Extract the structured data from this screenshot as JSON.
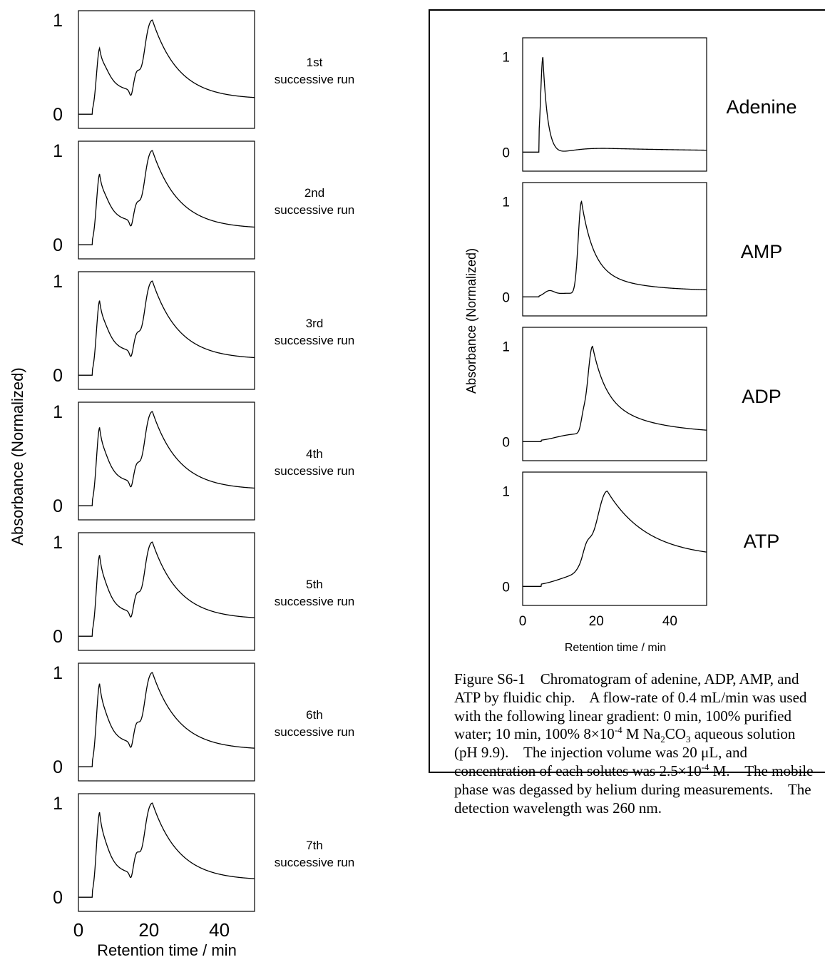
{
  "left_panel": {
    "ylabel": "Absorbance (Normalized)",
    "xlabel": "Retention time / min",
    "x_ticks": [
      "0",
      "20",
      "40"
    ],
    "y_ticks": [
      "0",
      "1"
    ],
    "runs": [
      {
        "label_line1": "1st",
        "label_line2": "successive run"
      },
      {
        "label_line1": "2nd",
        "label_line2": "successive run"
      },
      {
        "label_line1": "3rd",
        "label_line2": "successive run"
      },
      {
        "label_line1": "4th",
        "label_line2": "successive run"
      },
      {
        "label_line1": "5th",
        "label_line2": "successive run"
      },
      {
        "label_line1": "6th",
        "label_line2": "successive run"
      },
      {
        "label_line1": "7th",
        "label_line2": "successive run"
      }
    ]
  },
  "right_panel": {
    "ylabel": "Absorbance (Normalized)",
    "xlabel": "Retention time / min",
    "x_ticks": [
      "0",
      "20",
      "40"
    ],
    "y_ticks": [
      "0",
      "1"
    ],
    "solutes": [
      "Adenine",
      "AMP",
      "ADP",
      "ATP"
    ]
  },
  "caption": {
    "figure_label": "Figure S6-1",
    "text_1": "Chromatogram of adenine, ADP, AMP, and ATP by fluidic chip.",
    "text_2": "A flow-rate of 0.4 mL/min was used with the following linear gradient: 0 min, 100% purified water; 10 min, 100% 8×10",
    "exp_1": "-4",
    "text_3": " M Na",
    "sub_1": "2",
    "text_4": "CO",
    "sub_2": "3",
    "text_5": " aqueous solution (pH 9.9).",
    "text_6": "The injection volume was 20 μL, and concentration of each solutes was 2.5×10",
    "exp_2": "-4",
    "text_7": " M.",
    "text_8": "The mobile phase was degassed by helium during measurements.",
    "text_9": "The detection wavelength was 260 nm."
  },
  "chart_data": [
    {
      "type": "line",
      "panel": "left",
      "ylabel": "Absorbance (Normalized)",
      "xlabel": "Retention time / min",
      "xlim": [
        0,
        50
      ],
      "ylim": [
        -0.15,
        1.1
      ],
      "series": [
        {
          "name": "1st successive run",
          "peaks": [
            {
              "t": 6.0,
              "h": 0.65
            },
            {
              "t": 16.0,
              "h": 0.86
            },
            {
              "t": 21.0,
              "h": 1.0
            }
          ],
          "tail": 0.16
        },
        {
          "name": "2nd successive run",
          "peaks": [
            {
              "t": 6.0,
              "h": 0.7
            },
            {
              "t": 16.0,
              "h": 0.85
            },
            {
              "t": 21.0,
              "h": 1.0
            }
          ],
          "tail": 0.17
        },
        {
          "name": "3rd successive run",
          "peaks": [
            {
              "t": 6.0,
              "h": 0.74
            },
            {
              "t": 16.0,
              "h": 0.85
            },
            {
              "t": 21.0,
              "h": 1.0
            }
          ],
          "tail": 0.17
        },
        {
          "name": "4th successive run",
          "peaks": [
            {
              "t": 6.0,
              "h": 0.78
            },
            {
              "t": 16.0,
              "h": 0.85
            },
            {
              "t": 21.0,
              "h": 1.0
            }
          ],
          "tail": 0.17
        },
        {
          "name": "5th successive run",
          "peaks": [
            {
              "t": 6.0,
              "h": 0.81
            },
            {
              "t": 16.0,
              "h": 0.86
            },
            {
              "t": 21.0,
              "h": 1.0
            }
          ],
          "tail": 0.18
        },
        {
          "name": "6th successive run",
          "peaks": [
            {
              "t": 6.0,
              "h": 0.83
            },
            {
              "t": 16.0,
              "h": 0.87
            },
            {
              "t": 21.0,
              "h": 1.0
            }
          ],
          "tail": 0.18
        },
        {
          "name": "7th successive run",
          "peaks": [
            {
              "t": 6.0,
              "h": 0.85
            },
            {
              "t": 16.0,
              "h": 0.88
            },
            {
              "t": 21.0,
              "h": 1.0
            }
          ],
          "tail": 0.18
        }
      ]
    },
    {
      "type": "line",
      "panel": "right",
      "ylabel": "Absorbance (Normalized)",
      "xlabel": "Retention time / min",
      "xlim": [
        0,
        50
      ],
      "ylim": [
        -0.2,
        1.2
      ],
      "series": [
        {
          "name": "Adenine",
          "peak_time": 5.5,
          "peak_height": 1.0,
          "tail": 0.02
        },
        {
          "name": "AMP",
          "peak_time": 16.0,
          "peak_height": 1.0,
          "tail": 0.06
        },
        {
          "name": "ADP",
          "peak_time": 19.0,
          "peak_height": 1.0,
          "tail": 0.08
        },
        {
          "name": "ATP",
          "peak_time": 23.0,
          "peak_height": 1.0,
          "tail": 0.3
        }
      ]
    }
  ]
}
